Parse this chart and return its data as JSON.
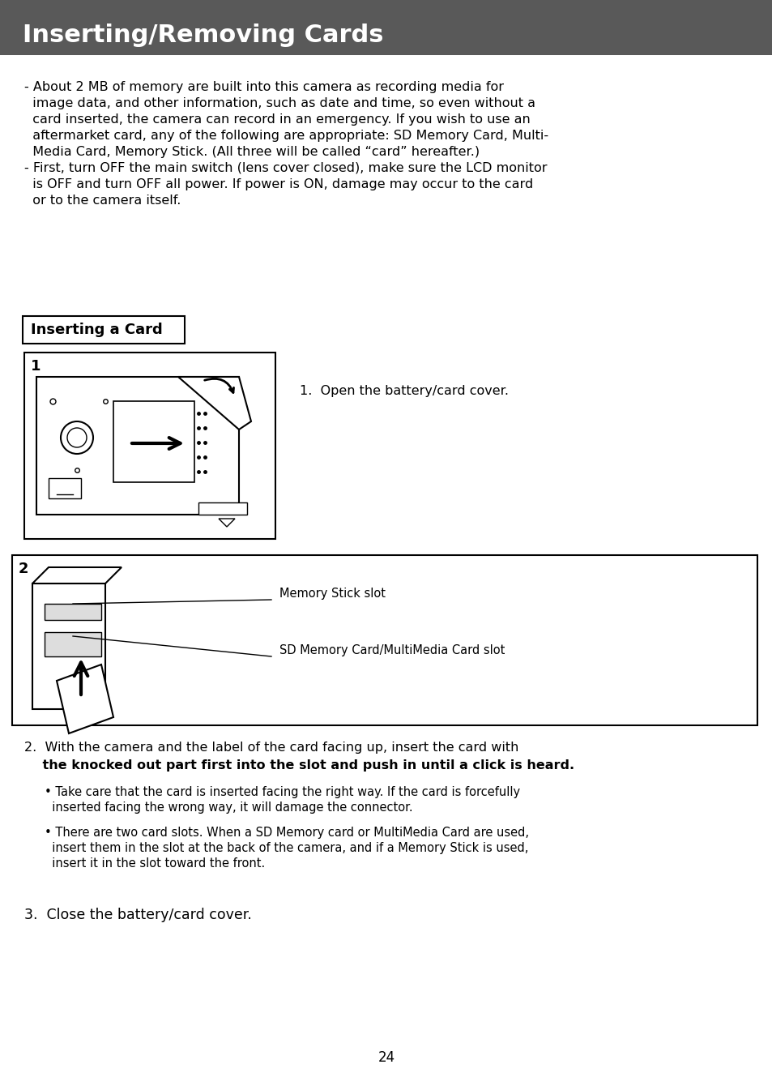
{
  "title": "Inserting/Removing Cards",
  "title_bg": "#595959",
  "title_color": "#ffffff",
  "title_fontsize": 22,
  "body_fontsize": 11.5,
  "small_fontsize": 10.5,
  "background_color": "#ffffff",
  "bullet1_line1": "- About 2 MB of memory are built into this camera as recording media for",
  "bullet1_line2": "  image data, and other information, such as date and time, so even without a",
  "bullet1_line3": "  card inserted, the camera can record in an emergency. If you wish to use an",
  "bullet1_line4": "  aftermarket card, any of the following are appropriate: SD Memory Card, Multi-",
  "bullet1_line5": "  Media Card, Memory Stick. (All three will be called “card” hereafter.)",
  "bullet2_line1": "- First, turn OFF the main switch (lens cover closed), make sure the LCD monitor",
  "bullet2_line2": "  is OFF and turn OFF all power. If power is ON, damage may occur to the card",
  "bullet2_line3": "  or to the camera itself.",
  "section_title": "Inserting a Card",
  "step1_text": "1.  Open the battery/card cover.",
  "step2_line1": "2.  With the camera and the label of the card facing up, insert the card with",
  "step2_line2": "    the knocked out part first into the slot and push in until a click is heard.",
  "bullet_a": "• Take care that the card is inserted facing the right way. If the card is forcefully",
  "bullet_a2": "  inserted facing the wrong way, it will damage the connector.",
  "bullet_b": "• There are two card slots. When a SD Memory card or MultiMedia Card are used,",
  "bullet_b2": "  insert them in the slot at the back of the camera, and if a Memory Stick is used,",
  "bullet_b3": "  insert it in the slot toward the front.",
  "step3_text": "3.  Close the battery/card cover.",
  "page_num": "24",
  "label_memory_stick": "Memory Stick slot",
  "label_sd_card": "SD Memory Card/MultiMedia Card slot"
}
